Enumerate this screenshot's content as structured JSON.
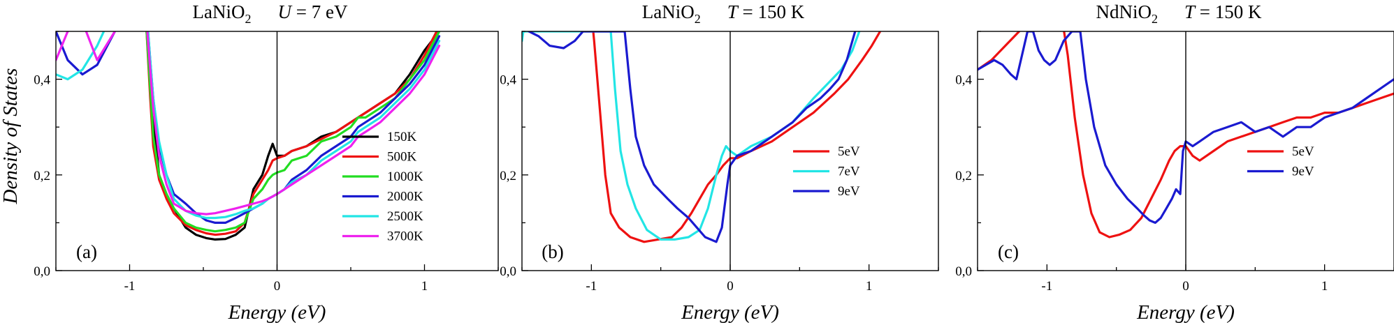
{
  "figure": {
    "ylabel": "Density of States",
    "xlabel": "Energy (eV)"
  },
  "chart_data": [
    {
      "type": "line",
      "panel": "(a)",
      "title_parts": [
        "LaNiO",
        "2",
        "U",
        " = 7 eV"
      ],
      "xlabel": "Energy (eV)",
      "ylabel": "Density of States",
      "xlim": [
        -1.5,
        1.5
      ],
      "ylim": [
        0,
        0.5
      ],
      "xticks": [
        -1,
        0,
        1
      ],
      "xtick_labels": [
        "-1",
        "0",
        "1"
      ],
      "yticks": [
        0,
        0.2,
        0.4
      ],
      "ytick_labels": [
        "0,0",
        "0,2",
        "0,4"
      ],
      "legend_position": "center-right",
      "series": [
        {
          "name": "150K",
          "color": "#000000",
          "x": [
            -1.5,
            -1.42,
            -1.32,
            -1.22,
            -1.1,
            -0.98,
            -0.91,
            -0.885,
            -0.86,
            -0.84,
            -0.8,
            -0.75,
            -0.7,
            -0.62,
            -0.55,
            -0.48,
            -0.42,
            -0.35,
            -0.28,
            -0.22,
            -0.16,
            -0.1,
            -0.06,
            -0.03,
            0,
            0.05,
            0.1,
            0.2,
            0.3,
            0.4,
            0.5,
            0.55,
            0.6,
            0.7,
            0.8,
            0.9,
            1.0,
            1.05,
            1.1
          ],
          "y": [
            0.55,
            0.52,
            0.52,
            0.54,
            0.58,
            0.6,
            0.6,
            0.52,
            0.42,
            0.32,
            0.2,
            0.16,
            0.13,
            0.09,
            0.075,
            0.068,
            0.065,
            0.066,
            0.075,
            0.09,
            0.17,
            0.2,
            0.24,
            0.265,
            0.24,
            0.24,
            0.25,
            0.26,
            0.28,
            0.29,
            0.31,
            0.32,
            0.33,
            0.35,
            0.37,
            0.41,
            0.46,
            0.48,
            0.51
          ]
        },
        {
          "name": "500K",
          "color": "#ee1111",
          "x": [
            -1.5,
            -1.42,
            -1.32,
            -1.22,
            -1.1,
            -0.98,
            -0.91,
            -0.885,
            -0.86,
            -0.84,
            -0.8,
            -0.75,
            -0.7,
            -0.62,
            -0.55,
            -0.48,
            -0.42,
            -0.35,
            -0.28,
            -0.22,
            -0.16,
            -0.1,
            -0.06,
            -0.03,
            0,
            0.05,
            0.1,
            0.2,
            0.3,
            0.4,
            0.5,
            0.55,
            0.6,
            0.7,
            0.8,
            0.9,
            1.0,
            1.05,
            1.1
          ],
          "y": [
            0.55,
            0.52,
            0.52,
            0.54,
            0.58,
            0.6,
            0.6,
            0.5,
            0.36,
            0.26,
            0.19,
            0.15,
            0.12,
            0.095,
            0.085,
            0.078,
            0.075,
            0.077,
            0.082,
            0.1,
            0.16,
            0.19,
            0.21,
            0.23,
            0.235,
            0.24,
            0.25,
            0.26,
            0.275,
            0.29,
            0.31,
            0.32,
            0.33,
            0.35,
            0.37,
            0.4,
            0.45,
            0.48,
            0.51
          ]
        },
        {
          "name": "1000K",
          "color": "#22dd22",
          "x": [
            -1.5,
            -1.42,
            -1.32,
            -1.22,
            -1.1,
            -0.98,
            -0.91,
            -0.885,
            -0.86,
            -0.84,
            -0.8,
            -0.75,
            -0.7,
            -0.62,
            -0.55,
            -0.48,
            -0.42,
            -0.35,
            -0.28,
            -0.22,
            -0.16,
            -0.1,
            -0.06,
            -0.03,
            0,
            0.05,
            0.1,
            0.2,
            0.3,
            0.4,
            0.5,
            0.55,
            0.6,
            0.7,
            0.8,
            0.9,
            1.0,
            1.05,
            1.1
          ],
          "y": [
            0.55,
            0.52,
            0.52,
            0.54,
            0.58,
            0.6,
            0.6,
            0.5,
            0.38,
            0.28,
            0.2,
            0.16,
            0.13,
            0.1,
            0.09,
            0.085,
            0.082,
            0.085,
            0.09,
            0.1,
            0.15,
            0.17,
            0.19,
            0.2,
            0.205,
            0.21,
            0.23,
            0.24,
            0.27,
            0.28,
            0.3,
            0.32,
            0.32,
            0.34,
            0.36,
            0.4,
            0.44,
            0.47,
            0.5
          ]
        },
        {
          "name": "2000K",
          "color": "#1a1ad0",
          "x": [
            -1.5,
            -1.42,
            -1.32,
            -1.22,
            -1.1,
            -0.98,
            -0.91,
            -0.885,
            -0.86,
            -0.84,
            -0.8,
            -0.75,
            -0.7,
            -0.62,
            -0.55,
            -0.48,
            -0.42,
            -0.35,
            -0.28,
            -0.22,
            -0.16,
            -0.1,
            -0.06,
            -0.03,
            0,
            0.05,
            0.1,
            0.2,
            0.3,
            0.4,
            0.5,
            0.55,
            0.6,
            0.7,
            0.8,
            0.9,
            1.0,
            1.05,
            1.1
          ],
          "y": [
            0.5,
            0.44,
            0.41,
            0.43,
            0.5,
            0.58,
            0.6,
            0.54,
            0.44,
            0.36,
            0.26,
            0.2,
            0.16,
            0.14,
            0.12,
            0.105,
            0.1,
            0.1,
            0.11,
            0.12,
            0.13,
            0.14,
            0.15,
            0.155,
            0.16,
            0.17,
            0.19,
            0.21,
            0.24,
            0.26,
            0.28,
            0.3,
            0.31,
            0.33,
            0.36,
            0.39,
            0.43,
            0.46,
            0.49
          ]
        },
        {
          "name": "2500K",
          "color": "#22e5e5",
          "x": [
            -1.5,
            -1.42,
            -1.32,
            -1.22,
            -1.1,
            -0.98,
            -0.91,
            -0.885,
            -0.86,
            -0.84,
            -0.8,
            -0.75,
            -0.7,
            -0.62,
            -0.55,
            -0.48,
            -0.42,
            -0.35,
            -0.28,
            -0.22,
            -0.16,
            -0.1,
            -0.06,
            -0.03,
            0,
            0.05,
            0.1,
            0.2,
            0.3,
            0.4,
            0.5,
            0.55,
            0.6,
            0.7,
            0.8,
            0.9,
            1.0,
            1.05,
            1.1
          ],
          "y": [
            0.41,
            0.4,
            0.42,
            0.47,
            0.55,
            0.6,
            0.6,
            0.54,
            0.44,
            0.36,
            0.27,
            0.2,
            0.15,
            0.125,
            0.115,
            0.11,
            0.11,
            0.112,
            0.118,
            0.125,
            0.13,
            0.14,
            0.15,
            0.155,
            0.16,
            0.17,
            0.185,
            0.2,
            0.23,
            0.25,
            0.27,
            0.29,
            0.3,
            0.32,
            0.35,
            0.38,
            0.42,
            0.45,
            0.48
          ]
        },
        {
          "name": "3700K",
          "color": "#ee22ee",
          "x": [
            -1.5,
            -1.42,
            -1.32,
            -1.22,
            -1.1,
            -0.98,
            -0.91,
            -0.885,
            -0.86,
            -0.84,
            -0.8,
            -0.75,
            -0.7,
            -0.62,
            -0.55,
            -0.48,
            -0.42,
            -0.35,
            -0.28,
            -0.22,
            -0.16,
            -0.1,
            -0.06,
            -0.03,
            0,
            0.05,
            0.1,
            0.2,
            0.3,
            0.4,
            0.5,
            0.55,
            0.6,
            0.7,
            0.8,
            0.9,
            1.0,
            1.05,
            1.1
          ],
          "y": [
            0.44,
            0.5,
            0.52,
            0.44,
            0.5,
            0.6,
            0.6,
            0.52,
            0.42,
            0.34,
            0.24,
            0.18,
            0.14,
            0.125,
            0.12,
            0.118,
            0.12,
            0.125,
            0.13,
            0.135,
            0.14,
            0.145,
            0.15,
            0.155,
            0.16,
            0.17,
            0.18,
            0.2,
            0.22,
            0.24,
            0.26,
            0.28,
            0.29,
            0.31,
            0.34,
            0.37,
            0.41,
            0.44,
            0.47
          ]
        }
      ]
    },
    {
      "type": "line",
      "panel": "(b)",
      "title_parts": [
        "LaNiO",
        "2",
        "T",
        " = 150 K"
      ],
      "xlabel": "Energy (eV)",
      "ylabel": "Density of States",
      "xlim": [
        -1.5,
        1.5
      ],
      "ylim": [
        0,
        0.5
      ],
      "xticks": [
        -1,
        0,
        1
      ],
      "xtick_labels": [
        "-1",
        "0",
        "1"
      ],
      "yticks": [
        0,
        0.2,
        0.4
      ],
      "ytick_labels": [
        "0,0",
        "0,2",
        "0,4"
      ],
      "legend_position": "center-right",
      "series": [
        {
          "name": "5eV",
          "color": "#ee1111",
          "x": [
            -1.02,
            -0.98,
            -0.94,
            -0.9,
            -0.86,
            -0.8,
            -0.72,
            -0.62,
            -0.52,
            -0.42,
            -0.35,
            -0.28,
            -0.22,
            -0.16,
            -0.1,
            -0.05,
            0,
            0.05,
            0.15,
            0.3,
            0.45,
            0.6,
            0.75,
            0.85,
            0.95,
            1.02,
            1.08
          ],
          "y": [
            0.6,
            0.48,
            0.34,
            0.2,
            0.12,
            0.09,
            0.07,
            0.06,
            0.065,
            0.07,
            0.09,
            0.12,
            0.15,
            0.18,
            0.2,
            0.22,
            0.235,
            0.235,
            0.25,
            0.27,
            0.3,
            0.33,
            0.37,
            0.4,
            0.44,
            0.47,
            0.5
          ]
        },
        {
          "name": "7eV",
          "color": "#22e5e5",
          "x": [
            -1.5,
            -1.49,
            -0.86,
            -0.83,
            -0.79,
            -0.74,
            -0.68,
            -0.6,
            -0.5,
            -0.4,
            -0.3,
            -0.22,
            -0.16,
            -0.1,
            -0.06,
            -0.03,
            0,
            0.05,
            0.15,
            0.3,
            0.45,
            0.6,
            0.7,
            0.8,
            0.88,
            0.93
          ],
          "y": [
            0.48,
            0.5,
            0.5,
            0.38,
            0.25,
            0.18,
            0.13,
            0.085,
            0.065,
            0.065,
            0.07,
            0.085,
            0.13,
            0.2,
            0.24,
            0.26,
            0.25,
            0.24,
            0.26,
            0.28,
            0.31,
            0.36,
            0.39,
            0.42,
            0.46,
            0.5
          ]
        },
        {
          "name": "9eV",
          "color": "#1a1ad0",
          "x": [
            -1.45,
            -1.38,
            -1.3,
            -1.2,
            -1.12,
            -1.06,
            -0.76,
            -0.72,
            -0.68,
            -0.62,
            -0.55,
            -0.45,
            -0.38,
            -0.3,
            -0.24,
            -0.18,
            -0.14,
            -0.1,
            -0.06,
            -0.02,
            0,
            0.05,
            0.15,
            0.3,
            0.45,
            0.55,
            0.65,
            0.72,
            0.78,
            0.84,
            0.9
          ],
          "y": [
            0.5,
            0.49,
            0.47,
            0.465,
            0.48,
            0.5,
            0.5,
            0.38,
            0.28,
            0.22,
            0.18,
            0.15,
            0.13,
            0.11,
            0.09,
            0.07,
            0.065,
            0.06,
            0.09,
            0.18,
            0.22,
            0.24,
            0.25,
            0.28,
            0.31,
            0.34,
            0.36,
            0.38,
            0.4,
            0.44,
            0.5
          ]
        }
      ]
    },
    {
      "type": "line",
      "panel": "(c)",
      "title_parts": [
        "NdNiO",
        "2",
        "T",
        " = 150 K"
      ],
      "xlabel": "Energy (eV)",
      "ylabel": "Density of States",
      "xlim": [
        -1.5,
        1.5
      ],
      "ylim": [
        0,
        0.5
      ],
      "xticks": [
        -1,
        0,
        1
      ],
      "xtick_labels": [
        "-1",
        "0",
        "1"
      ],
      "yticks": [
        0,
        0.2,
        0.4
      ],
      "ytick_labels": [
        "0,0",
        "0,2",
        "0,4"
      ],
      "legend_position": "center-right",
      "series": [
        {
          "name": "5eV",
          "color": "#ee1111",
          "x": [
            -1.5,
            -1.4,
            -1.3,
            -1.2,
            -1.14,
            -1.1,
            -0.92,
            -0.85,
            -0.8,
            -0.74,
            -0.68,
            -0.62,
            -0.55,
            -0.48,
            -0.4,
            -0.32,
            -0.25,
            -0.18,
            -0.12,
            -0.08,
            -0.04,
            0,
            0.05,
            0.1,
            0.2,
            0.3,
            0.4,
            0.5,
            0.6,
            0.7,
            0.8,
            0.9,
            1.0,
            1.1,
            1.2,
            1.3,
            1.4,
            1.5
          ],
          "y": [
            0.42,
            0.44,
            0.47,
            0.5,
            0.54,
            0.58,
            0.58,
            0.45,
            0.32,
            0.2,
            0.12,
            0.08,
            0.07,
            0.075,
            0.085,
            0.11,
            0.15,
            0.19,
            0.23,
            0.25,
            0.26,
            0.26,
            0.24,
            0.23,
            0.25,
            0.27,
            0.28,
            0.29,
            0.3,
            0.31,
            0.32,
            0.32,
            0.33,
            0.33,
            0.34,
            0.35,
            0.36,
            0.37
          ]
        },
        {
          "name": "9eV",
          "color": "#1a1ad0",
          "x": [
            -1.5,
            -1.44,
            -1.38,
            -1.32,
            -1.26,
            -1.22,
            -1.18,
            -1.14,
            -1.1,
            -1.06,
            -1.02,
            -0.98,
            -0.94,
            -0.88,
            -0.82,
            -0.76,
            -0.72,
            -0.66,
            -0.58,
            -0.5,
            -0.42,
            -0.35,
            -0.3,
            -0.26,
            -0.22,
            -0.18,
            -0.14,
            -0.1,
            -0.07,
            -0.04,
            -0.02,
            0,
            0.05,
            0.1,
            0.2,
            0.3,
            0.4,
            0.5,
            0.6,
            0.7,
            0.8,
            0.9,
            1.0,
            1.1,
            1.2,
            1.3,
            1.4,
            1.5
          ],
          "y": [
            0.42,
            0.43,
            0.44,
            0.43,
            0.41,
            0.4,
            0.45,
            0.5,
            0.5,
            0.46,
            0.44,
            0.43,
            0.44,
            0.48,
            0.5,
            0.5,
            0.4,
            0.3,
            0.22,
            0.18,
            0.15,
            0.13,
            0.115,
            0.105,
            0.1,
            0.11,
            0.13,
            0.15,
            0.17,
            0.16,
            0.25,
            0.27,
            0.26,
            0.27,
            0.29,
            0.3,
            0.31,
            0.29,
            0.3,
            0.28,
            0.3,
            0.3,
            0.32,
            0.33,
            0.34,
            0.36,
            0.38,
            0.4
          ]
        }
      ]
    }
  ]
}
